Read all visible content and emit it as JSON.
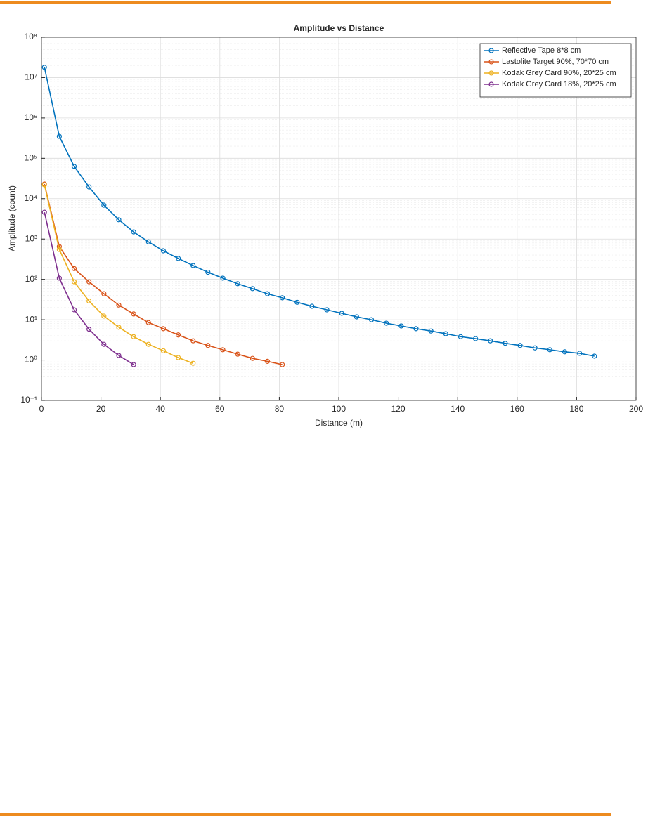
{
  "chart_data": {
    "type": "line",
    "title": "Amplitude vs Distance",
    "x_label": "Distance (m)",
    "y_label": "Amplitude (count)",
    "log_y": true,
    "grid": true,
    "minor_grid": true,
    "legend": "top-right",
    "xlim": [
      0,
      200
    ],
    "xticks": [
      0,
      20,
      40,
      60,
      80,
      100,
      120,
      140,
      160,
      180,
      200
    ],
    "ylim": [
      0.1,
      100000000
    ],
    "yticks": [
      {
        "value": 0.1,
        "label": "10⁻¹"
      },
      {
        "value": 1,
        "label": "10⁰"
      },
      {
        "value": 10,
        "label": "10¹"
      },
      {
        "value": 100,
        "label": "10²"
      },
      {
        "value": 1000,
        "label": "10³"
      },
      {
        "value": 10000,
        "label": "10⁴"
      },
      {
        "value": 100000,
        "label": "10⁵"
      },
      {
        "value": 1000000,
        "label": "10⁶"
      },
      {
        "value": 10000000,
        "label": "10⁷"
      },
      {
        "value": 100000000,
        "label": "10⁸"
      }
    ],
    "series": [
      {
        "name": "Reflective Tape 8*8 cm",
        "color": "#0072BD",
        "x": [
          1,
          6,
          11,
          16,
          21,
          26,
          31,
          36,
          41,
          46,
          51,
          56,
          61,
          66,
          71,
          76,
          81,
          86,
          91,
          96,
          101,
          106,
          111,
          116,
          121,
          126,
          131,
          136,
          141,
          146,
          151,
          156,
          161,
          166,
          171,
          176,
          181,
          186
        ],
        "values": [
          18000000,
          350000,
          63000,
          19500,
          6900,
          3000,
          1500,
          850,
          510,
          330,
          220,
          150,
          107,
          78,
          59,
          44,
          35,
          27,
          21.5,
          17.6,
          14.4,
          11.8,
          10,
          8.2,
          7,
          6,
          5.25,
          4.5,
          3.8,
          3.4,
          3,
          2.6,
          2.3,
          2,
          1.8,
          1.6,
          1.47,
          1.25
        ]
      },
      {
        "name": "Lastolite Target 90%, 70*70 cm",
        "color": "#D95319",
        "x": [
          1,
          6,
          11,
          16,
          21,
          26,
          31,
          36,
          41,
          46,
          51,
          56,
          61,
          66,
          71,
          76,
          81
        ],
        "values": [
          23000,
          650,
          185,
          87,
          44,
          23,
          13.9,
          8.5,
          6,
          4.2,
          3,
          2.3,
          1.8,
          1.4,
          1.1,
          0.93,
          0.77
        ]
      },
      {
        "name": "Kodak Grey Card 90%, 20*25 cm",
        "color": "#EDB120",
        "x": [
          1,
          6,
          11,
          16,
          21,
          26,
          31,
          36,
          41,
          46,
          51
        ],
        "values": [
          22000,
          550,
          87,
          29,
          12.3,
          6.5,
          3.8,
          2.45,
          1.7,
          1.15,
          0.83
        ]
      },
      {
        "name": "Kodak Grey Card 18%, 20*25 cm",
        "color": "#7E2F8E",
        "x": [
          1,
          6,
          11,
          16,
          21,
          26,
          31
        ],
        "values": [
          4600,
          107,
          17.6,
          5.8,
          2.45,
          1.3,
          0.77
        ]
      }
    ]
  }
}
